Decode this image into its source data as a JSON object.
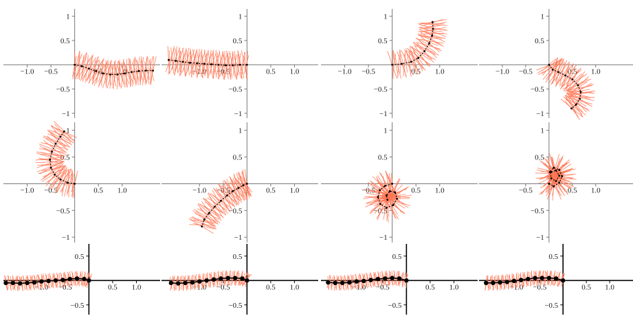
{
  "figure": {
    "colors": {
      "axis": "#777777",
      "axis_strong": "#000000",
      "curve": "#000000",
      "normal": "#ff7755",
      "background": "#ffffff"
    }
  },
  "chart_data": [
    {
      "type": "line",
      "panel": "r1c1",
      "xlim": [
        -1.5,
        1.8
      ],
      "ylim": [
        -1.1,
        1.15
      ],
      "xticks": [
        -1.0,
        -0.5,
        0.5,
        1.0
      ],
      "yticks": [
        1,
        0.5,
        -0.5,
        -1
      ],
      "xtick_labels": [
        "−1.0",
        "−0.5",
        "0.5",
        "1.0"
      ],
      "ytick_labels": [
        "1",
        "0.5",
        "−0.5",
        "−1"
      ],
      "x": [
        0,
        0.15,
        0.3,
        0.45,
        0.6,
        0.75,
        0.9,
        1.05,
        1.2,
        1.35,
        1.5,
        1.65
      ],
      "y": [
        0,
        -0.03,
        -0.08,
        -0.13,
        -0.18,
        -0.2,
        -0.2,
        -0.18,
        -0.15,
        -0.13,
        -0.12,
        -0.12
      ]
    },
    {
      "type": "line",
      "panel": "r1c2",
      "xlim": [
        -1.8,
        1.5
      ],
      "ylim": [
        -1.1,
        1.15
      ],
      "xticks": [
        -1.0,
        -0.5,
        0.5,
        1.0
      ],
      "yticks": [
        1,
        0.5,
        -0.5,
        -1
      ],
      "xtick_labels": [
        "−1.0",
        "−0.5",
        "0.5",
        "1.0"
      ],
      "ytick_labels": [
        "1",
        "0.5",
        "−0.5",
        "−1"
      ],
      "x": [
        -1.65,
        -1.5,
        -1.35,
        -1.2,
        -1.05,
        -0.9,
        -0.75,
        -0.6,
        -0.45,
        -0.3,
        -0.15,
        0
      ],
      "y": [
        0.1,
        0.08,
        0.06,
        0.04,
        0.03,
        0.02,
        0.01,
        0.0,
        -0.01,
        -0.01,
        0.0,
        0.0
      ]
    },
    {
      "type": "line",
      "panel": "r1c3",
      "xlim": [
        -1.5,
        1.8
      ],
      "ylim": [
        -1.1,
        1.15
      ],
      "xticks": [
        -1.0,
        -0.5,
        0.5,
        1.0
      ],
      "yticks": [
        1,
        0.5,
        -0.5,
        -1
      ],
      "xtick_labels": [
        "−1.0",
        "−0.5",
        "0.5",
        "1.0"
      ],
      "ytick_labels": [
        "1",
        "0.5",
        "−0.5",
        "−1"
      ],
      "x": [
        0.0,
        0.2,
        0.4,
        0.55,
        0.68,
        0.78,
        0.84,
        0.86,
        0.85
      ],
      "y": [
        0.0,
        0.02,
        0.06,
        0.14,
        0.28,
        0.44,
        0.6,
        0.74,
        0.88
      ]
    },
    {
      "type": "line",
      "panel": "r1c4",
      "xlim": [
        -1.5,
        1.8
      ],
      "ylim": [
        -1.1,
        1.15
      ],
      "xticks": [
        -1.0,
        -0.5,
        0.5,
        1.0
      ],
      "yticks": [
        1,
        0.5,
        -0.5,
        -1
      ],
      "xtick_labels": [
        "−1.0",
        "−0.5",
        "0.5",
        "1.0"
      ],
      "ytick_labels": [
        "1",
        "0.5",
        "−0.5",
        "−1"
      ],
      "x": [
        0.0,
        0.08,
        0.2,
        0.35,
        0.5,
        0.62,
        0.68,
        0.66,
        0.58,
        0.48
      ],
      "y": [
        0.0,
        -0.1,
        -0.15,
        -0.22,
        -0.3,
        -0.42,
        -0.56,
        -0.7,
        -0.82,
        -0.9
      ]
    },
    {
      "type": "line",
      "panel": "r2c1",
      "xlim": [
        -1.5,
        1.8
      ],
      "ylim": [
        -1.1,
        1.15
      ],
      "xticks": [
        -1.0,
        -0.5,
        0.5,
        1.0
      ],
      "yticks": [
        1,
        0.5,
        -0.5,
        -1
      ],
      "xtick_labels": [
        "−1.0",
        "−0.5",
        "0.5",
        "1.0"
      ],
      "ytick_labels": [
        "1",
        "0.5",
        "−0.5",
        "−1"
      ],
      "x": [
        0.0,
        -0.15,
        -0.3,
        -0.42,
        -0.5,
        -0.52,
        -0.48,
        -0.4,
        -0.3,
        -0.22
      ],
      "y": [
        0.0,
        0.02,
        0.08,
        0.17,
        0.3,
        0.45,
        0.6,
        0.75,
        0.88,
        0.98
      ]
    },
    {
      "type": "line",
      "panel": "r2c2",
      "xlim": [
        -1.8,
        1.5
      ],
      "ylim": [
        -1.1,
        1.15
      ],
      "xticks": [
        -1.0,
        -0.5,
        0.5,
        1.0
      ],
      "yticks": [
        1,
        0.5,
        -0.5,
        -1
      ],
      "xtick_labels": [
        "−1.0",
        "−0.5",
        "0.5",
        "1.0"
      ],
      "ytick_labels": [
        "1",
        "0.5",
        "−0.5",
        "−1"
      ],
      "x": [
        0.0,
        -0.08,
        -0.18,
        -0.3,
        -0.42,
        -0.55,
        -0.68,
        -0.8,
        -0.9,
        -0.95
      ],
      "y": [
        0.0,
        -0.03,
        -0.08,
        -0.14,
        -0.22,
        -0.32,
        -0.43,
        -0.55,
        -0.67,
        -0.8
      ]
    },
    {
      "type": "line",
      "panel": "r2c3",
      "xlim": [
        -1.5,
        1.8
      ],
      "ylim": [
        -1.1,
        1.15
      ],
      "xticks": [
        -0.5,
        0.5,
        1.0
      ],
      "yticks": [
        1,
        0.5,
        -0.5,
        -1
      ],
      "xtick_labels": [
        "−0.5",
        "0.5",
        "1.0"
      ],
      "ytick_labels": [
        "1",
        "0.5",
        "−0.5",
        "−1"
      ],
      "x": [
        0.0,
        -0.15,
        -0.26,
        -0.3,
        -0.25,
        -0.12,
        0.02,
        0.1,
        0.06,
        -0.05,
        -0.12,
        -0.1
      ],
      "y": [
        0.0,
        -0.04,
        -0.12,
        -0.25,
        -0.38,
        -0.45,
        -0.4,
        -0.28,
        -0.16,
        -0.14,
        -0.22,
        -0.3
      ]
    },
    {
      "type": "line",
      "panel": "r2c4",
      "xlim": [
        -1.5,
        1.8
      ],
      "ylim": [
        -1.1,
        1.15
      ],
      "xticks": [
        -0.5,
        0.5,
        1.0
      ],
      "yticks": [
        1,
        0.5,
        -0.5,
        -1
      ],
      "xtick_labels": [
        "−0.5",
        "0.5",
        "1.0"
      ],
      "ytick_labels": [
        "1",
        "0.5",
        "−0.5",
        "−1"
      ],
      "x": [
        0.0,
        0.1,
        0.22,
        0.28,
        0.22,
        0.1,
        0.02,
        0.05,
        0.15,
        0.22,
        0.15,
        0.05
      ],
      "y": [
        0.0,
        -0.05,
        0.02,
        0.14,
        0.26,
        0.3,
        0.22,
        0.1,
        0.05,
        0.15,
        0.25,
        0.22
      ]
    },
    {
      "type": "line",
      "panel": "r3c1",
      "xlim": [
        -1.8,
        1.5
      ],
      "ylim": [
        -0.7,
        0.75
      ],
      "xticks": [
        -1.0,
        -0.5,
        0.5,
        1.0
      ],
      "yticks": [
        0.5,
        -0.5
      ],
      "xtick_labels": [
        "−1.0",
        "−0.5",
        "0.5",
        "1.0"
      ],
      "ytick_labels": [
        "0.5",
        "−0.5"
      ],
      "x": [
        -1.75,
        -1.6,
        -1.45,
        -1.3,
        -1.15,
        -1.0,
        -0.85,
        -0.7,
        -0.55,
        -0.4,
        -0.25,
        -0.1,
        0
      ],
      "y": [
        -0.05,
        -0.05,
        -0.06,
        -0.05,
        -0.04,
        -0.02,
        -0.01,
        0.0,
        0.01,
        0.03,
        0.04,
        0.03,
        0.0
      ]
    },
    {
      "type": "line",
      "panel": "r3c2",
      "xlim": [
        -1.8,
        1.5
      ],
      "ylim": [
        -0.7,
        0.75
      ],
      "xticks": [
        -1.0,
        -0.5,
        0.5,
        1.0
      ],
      "yticks": [
        0.5,
        -0.5
      ],
      "xtick_labels": [
        "−1.0",
        "−0.5",
        "0.5",
        "1.0"
      ],
      "ytick_labels": [
        "0.5",
        "−0.5"
      ],
      "x": [
        -1.6,
        -1.45,
        -1.3,
        -1.15,
        -1.0,
        -0.85,
        -0.7,
        -0.55,
        -0.4,
        -0.25,
        -0.1,
        0
      ],
      "y": [
        -0.05,
        -0.06,
        -0.05,
        -0.04,
        -0.02,
        0.0,
        0.02,
        0.04,
        0.05,
        0.05,
        0.04,
        0.0
      ]
    },
    {
      "type": "line",
      "panel": "r3c3",
      "xlim": [
        -1.8,
        1.5
      ],
      "ylim": [
        -0.7,
        0.75
      ],
      "xticks": [
        -1.0,
        -0.5,
        0.5,
        1.0
      ],
      "yticks": [
        0.5,
        -0.5
      ],
      "xtick_labels": [
        "−1.0",
        "−0.5",
        "0.5",
        "1.0"
      ],
      "ytick_labels": [
        "0.5",
        "−0.5"
      ],
      "x": [
        -1.65,
        -1.5,
        -1.35,
        -1.2,
        -1.05,
        -0.9,
        -0.75,
        -0.6,
        -0.45,
        -0.3,
        -0.15,
        0
      ],
      "y": [
        -0.04,
        -0.05,
        -0.05,
        -0.04,
        -0.02,
        -0.01,
        0.01,
        0.03,
        0.04,
        0.05,
        0.04,
        0.0
      ]
    },
    {
      "type": "line",
      "panel": "r3c4",
      "xlim": [
        -1.8,
        1.5
      ],
      "ylim": [
        -0.7,
        0.75
      ],
      "xticks": [
        -1.0,
        -0.5,
        0.5,
        1.0
      ],
      "yticks": [
        0.5,
        -0.5
      ],
      "xtick_labels": [
        "−1.0",
        "−0.5",
        "0.5",
        "1.0"
      ],
      "ytick_labels": [
        "0.5",
        "−0.5"
      ],
      "x": [
        -1.65,
        -1.5,
        -1.35,
        -1.2,
        -1.05,
        -0.9,
        -0.75,
        -0.6,
        -0.45,
        -0.3,
        -0.15,
        0
      ],
      "y": [
        -0.05,
        -0.05,
        -0.04,
        -0.03,
        -0.01,
        0.01,
        0.03,
        0.05,
        0.05,
        0.05,
        0.04,
        0.0
      ]
    }
  ]
}
